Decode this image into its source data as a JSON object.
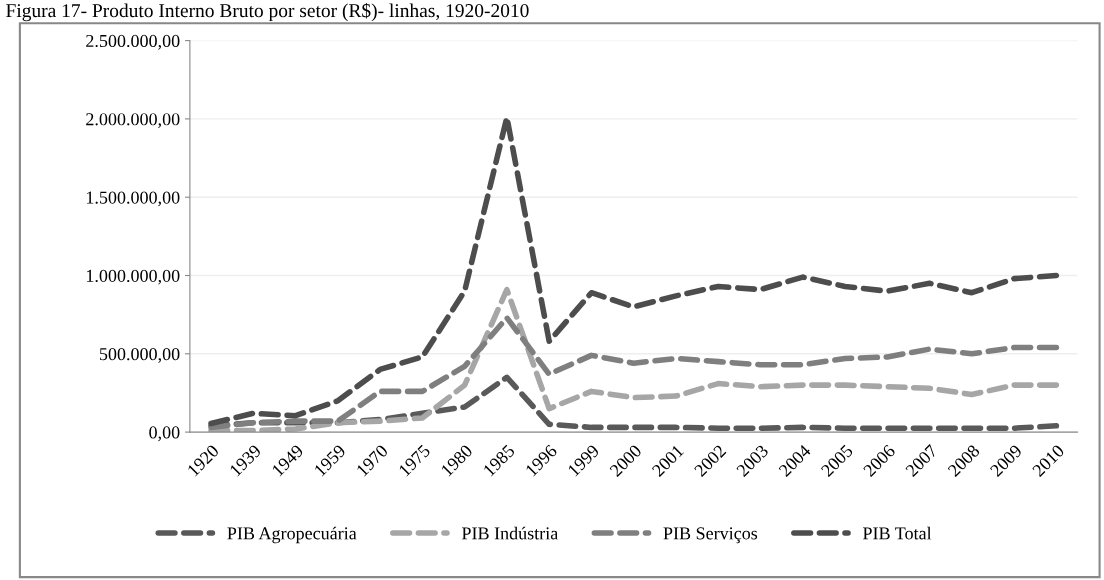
{
  "chart_data": {
    "type": "line",
    "title": "Figura 17- Produto Interno Bruto por setor (R$)- linhas, 1920-2010",
    "categories": [
      "1920",
      "1939",
      "1949",
      "1959",
      "1970",
      "1975",
      "1980",
      "1985",
      "1996",
      "1999",
      "2000",
      "2001",
      "2002",
      "2003",
      "2004",
      "2005",
      "2006",
      "2007",
      "2008",
      "2009",
      "2010"
    ],
    "series": [
      {
        "name": "PIB Agropecuária",
        "color": "#595959",
        "values": [
          40000,
          60000,
          60000,
          60000,
          80000,
          120000,
          160000,
          350000,
          50000,
          30000,
          30000,
          30000,
          25000,
          25000,
          30000,
          25000,
          25000,
          25000,
          25000,
          25000,
          40000
        ]
      },
      {
        "name": "PIB Indústria",
        "color": "#a6a6a6",
        "values": [
          10000,
          10000,
          20000,
          60000,
          70000,
          90000,
          300000,
          910000,
          150000,
          260000,
          220000,
          230000,
          310000,
          290000,
          300000,
          300000,
          290000,
          280000,
          240000,
          300000,
          300000
        ]
      },
      {
        "name": "PIB Serviços",
        "color": "#7f7f7f",
        "values": [
          30000,
          60000,
          70000,
          70000,
          260000,
          260000,
          420000,
          730000,
          370000,
          490000,
          440000,
          470000,
          450000,
          430000,
          430000,
          470000,
          480000,
          530000,
          500000,
          540000,
          540000
        ]
      },
      {
        "name": "PIB Total",
        "color": "#4d4d4d",
        "values": [
          55000,
          120000,
          105000,
          200000,
          400000,
          480000,
          900000,
          2010000,
          580000,
          890000,
          800000,
          870000,
          930000,
          910000,
          990000,
          930000,
          900000,
          950000,
          890000,
          980000,
          1000000
        ]
      }
    ],
    "ylim": [
      0,
      2500000
    ],
    "yticks": [
      {
        "value": 0,
        "label": "0,00"
      },
      {
        "value": 500000,
        "label": "500.000,00"
      },
      {
        "value": 1000000,
        "label": "1.000.000,00"
      },
      {
        "value": 1500000,
        "label": "1.500.000,00"
      },
      {
        "value": 2000000,
        "label": "2.000.000,00"
      },
      {
        "value": 2500000,
        "label": "2.500.000,00"
      }
    ],
    "grid": "y",
    "legend": "bottom",
    "marker": "none",
    "line_style": "dashed"
  }
}
